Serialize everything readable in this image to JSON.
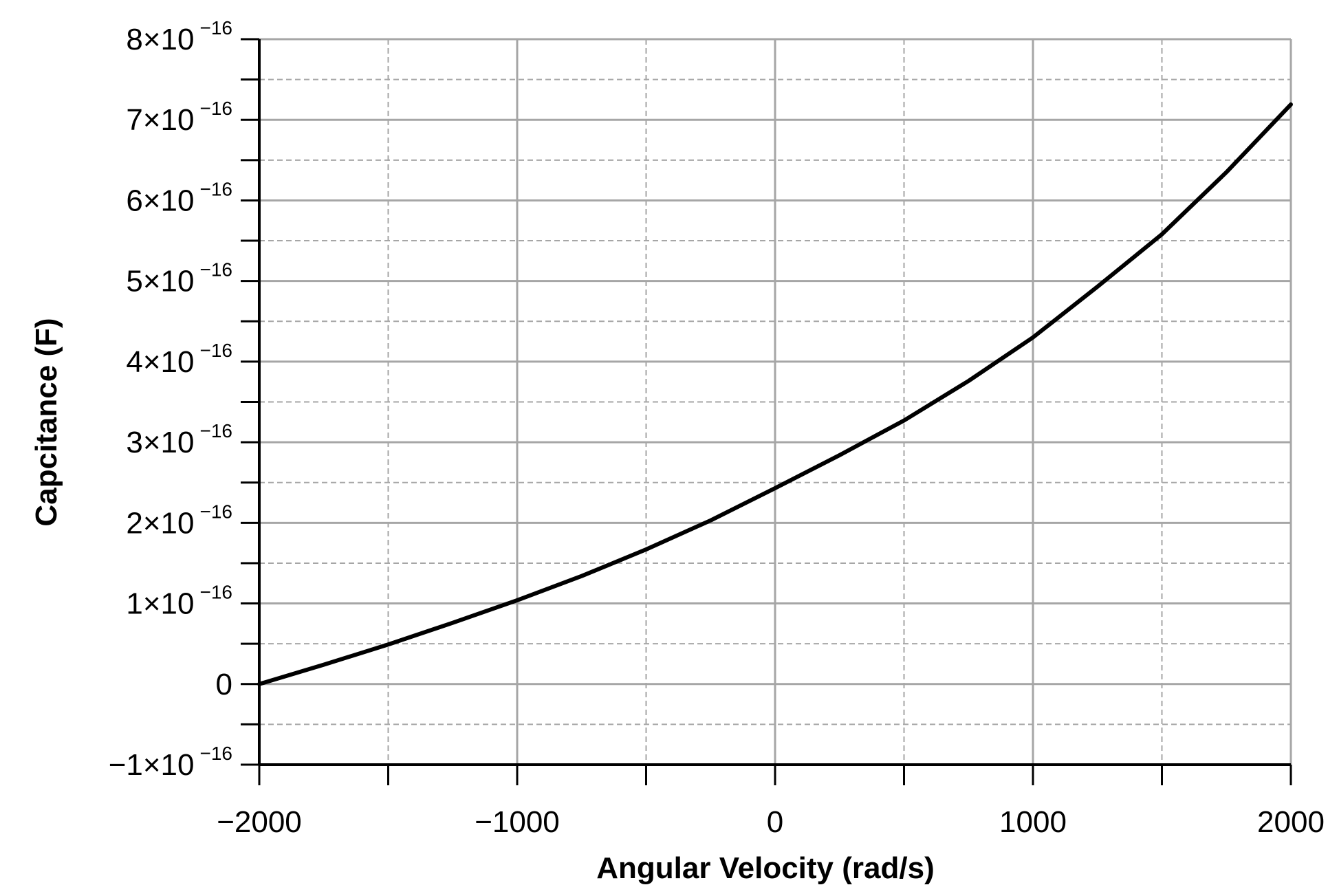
{
  "chart_data": {
    "type": "line",
    "xlabel": "Angular Velocity (rad/s)",
    "ylabel": "Capcitance (F)",
    "xlim": [
      -2000,
      2000
    ],
    "ylim": [
      -1e-16,
      8e-16
    ],
    "grid": true,
    "x_ticks": [
      {
        "value": -2000,
        "label": "−2000"
      },
      {
        "value": -1000,
        "label": "−1000"
      },
      {
        "value": 0,
        "label": "0"
      },
      {
        "value": 1000,
        "label": "1000"
      },
      {
        "value": 2000,
        "label": "2000"
      }
    ],
    "y_ticks": [
      {
        "value": 8e-16,
        "mant": "8×10",
        "exp": "−16"
      },
      {
        "value": 7e-16,
        "mant": "7×10",
        "exp": "−16"
      },
      {
        "value": 6e-16,
        "mant": "6×10",
        "exp": "−16"
      },
      {
        "value": 5e-16,
        "mant": "5×10",
        "exp": "−16"
      },
      {
        "value": 4e-16,
        "mant": "4×10",
        "exp": "−16"
      },
      {
        "value": 3e-16,
        "mant": "3×10",
        "exp": "−16"
      },
      {
        "value": 2e-16,
        "mant": "2×10",
        "exp": "−16"
      },
      {
        "value": 1e-16,
        "mant": "1×10",
        "exp": "−16"
      },
      {
        "value": 0,
        "mant": "0",
        "exp": ""
      },
      {
        "value": -1e-16,
        "mant": "−1×10",
        "exp": "−16"
      }
    ],
    "series": [
      {
        "color": "#000000",
        "x": [
          -2000,
          -1750,
          -1500,
          -1250,
          -1000,
          -750,
          -500,
          -250,
          0,
          250,
          500,
          750,
          1000,
          1250,
          1500,
          1750,
          2000
        ],
        "y": [
          0,
          2.4e-17,
          4.9e-17,
          7.6e-17,
          1.04e-16,
          1.34e-16,
          1.67e-16,
          2.03e-16,
          2.43e-16,
          2.84e-16,
          3.27e-16,
          3.76e-16,
          4.3e-16,
          4.93e-16,
          5.58e-16,
          6.35e-16,
          7.19e-16
        ]
      }
    ]
  }
}
